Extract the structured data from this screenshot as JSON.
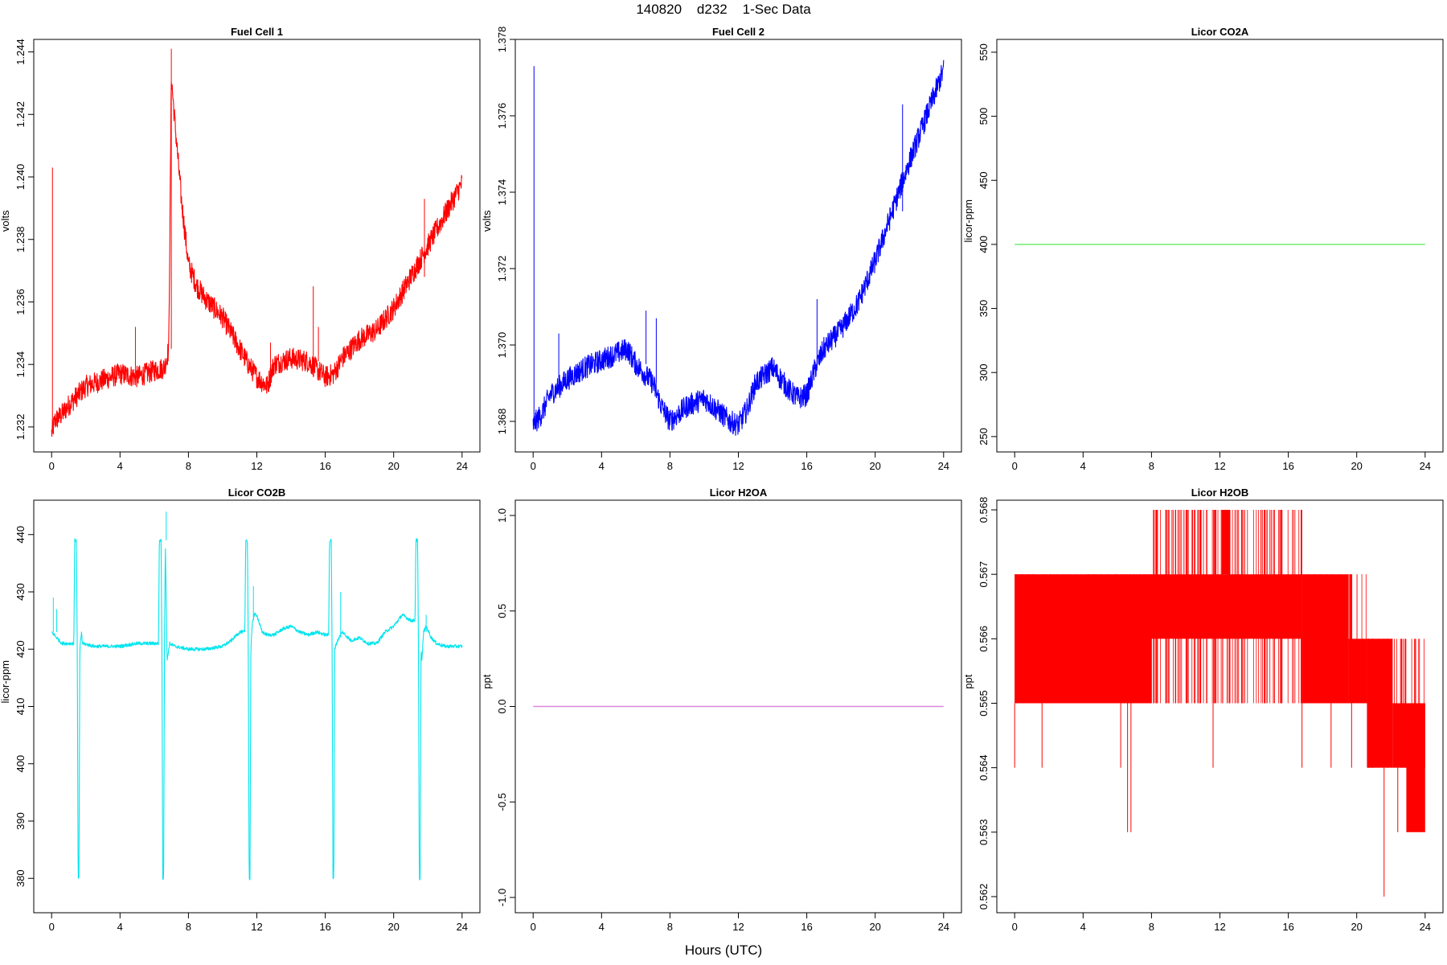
{
  "page": {
    "title": "140820    d232    1-Sec Data",
    "x_axis_title": "Hours (UTC)"
  },
  "chart_data": [
    {
      "id": "fuel-cell-1",
      "type": "line",
      "title": "Fuel Cell 1",
      "xlabel": "",
      "ylabel": "volts",
      "color": "#ff0000",
      "xlim": [
        0,
        24
      ],
      "ylim": [
        1.2312,
        1.2444
      ],
      "xticks": [
        0,
        4,
        8,
        12,
        16,
        20,
        24
      ],
      "yticks": [
        1.232,
        1.234,
        1.236,
        1.238,
        1.24,
        1.242,
        1.244
      ],
      "ytick_labels": [
        "1.232",
        "1.234",
        "1.236",
        "1.238",
        "1.240",
        "1.242",
        "1.244"
      ],
      "noise": 0.00035,
      "spikes": [
        [
          0.05,
          1.2403
        ],
        [
          7.0,
          1.2441
        ],
        [
          4.9,
          1.2352
        ],
        [
          12.8,
          1.2347
        ],
        [
          15.3,
          1.2365
        ],
        [
          15.6,
          1.2352
        ],
        [
          21.8,
          1.2393
        ]
      ],
      "x": [
        0,
        0.2,
        0.6,
        1,
        1.5,
        2,
        3,
        4,
        5,
        6,
        6.6,
        6.85,
        7.0,
        7.2,
        7.6,
        8,
        8.5,
        9,
        10,
        11,
        11.5,
        12,
        12.6,
        13,
        14,
        15,
        16,
        16.5,
        17,
        18,
        19,
        20,
        21,
        22,
        23,
        24
      ],
      "y": [
        1.2318,
        1.2322,
        1.2324,
        1.2327,
        1.233,
        1.2333,
        1.2335,
        1.2337,
        1.2336,
        1.2338,
        1.2339,
        1.2345,
        1.2432,
        1.2418,
        1.2392,
        1.2372,
        1.2365,
        1.2361,
        1.2355,
        1.2345,
        1.234,
        1.2336,
        1.2333,
        1.234,
        1.2342,
        1.2341,
        1.2336,
        1.2337,
        1.2342,
        1.2348,
        1.2351,
        1.2358,
        1.2368,
        1.2378,
        1.2388,
        1.2398
      ]
    },
    {
      "id": "fuel-cell-2",
      "type": "line",
      "title": "Fuel Cell 2",
      "xlabel": "",
      "ylabel": "volts",
      "color": "#0000ff",
      "xlim": [
        0,
        24
      ],
      "ylim": [
        1.3672,
        1.378
      ],
      "xticks": [
        0,
        4,
        8,
        12,
        16,
        20,
        24
      ],
      "yticks": [
        1.368,
        1.37,
        1.372,
        1.374,
        1.376,
        1.378
      ],
      "ytick_labels": [
        "1.368",
        "1.370",
        "1.372",
        "1.374",
        "1.376",
        "1.378"
      ],
      "noise": 0.0003,
      "spikes": [
        [
          0.05,
          1.3773
        ],
        [
          1.5,
          1.3703
        ],
        [
          6.6,
          1.3709
        ],
        [
          7.2,
          1.3707
        ],
        [
          16.6,
          1.3712
        ],
        [
          21.6,
          1.3763
        ]
      ],
      "x": [
        0,
        0.5,
        1,
        2,
        3,
        4,
        5,
        5.5,
        6,
        7,
        7.5,
        8,
        9,
        10,
        11,
        11.5,
        12,
        12.5,
        13,
        14,
        15,
        15.5,
        16,
        16.5,
        17,
        18,
        19,
        20,
        21,
        22,
        23,
        24
      ],
      "y": [
        1.3679,
        1.3682,
        1.3687,
        1.3691,
        1.3694,
        1.3696,
        1.3698,
        1.3699,
        1.3695,
        1.369,
        1.3684,
        1.368,
        1.3684,
        1.3686,
        1.3682,
        1.368,
        1.3679,
        1.3683,
        1.369,
        1.3694,
        1.3688,
        1.3686,
        1.3687,
        1.3694,
        1.3699,
        1.3704,
        1.3711,
        1.3722,
        1.3735,
        1.3748,
        1.376,
        1.3772
      ]
    },
    {
      "id": "licor-co2a",
      "type": "line",
      "title": "Licor CO2A",
      "xlabel": "",
      "ylabel": "licor-ppm",
      "color": "#66ee66",
      "xlim": [
        0,
        24
      ],
      "ylim": [
        238,
        560
      ],
      "xticks": [
        0,
        4,
        8,
        12,
        16,
        20,
        24
      ],
      "yticks": [
        250,
        300,
        350,
        400,
        450,
        500,
        550
      ],
      "ytick_labels": [
        "250",
        "300",
        "350",
        "400",
        "450",
        "500",
        "550"
      ],
      "noise": 0,
      "spikes": [],
      "x": [
        0,
        24
      ],
      "y": [
        400,
        400
      ]
    },
    {
      "id": "licor-co2b",
      "type": "line",
      "title": "Licor CO2B",
      "xlabel": "",
      "ylabel": "licor-ppm",
      "color": "#00e5ee",
      "xlim": [
        0,
        24
      ],
      "ylim": [
        374,
        446
      ],
      "xticks": [
        0,
        4,
        8,
        12,
        16,
        20,
        24
      ],
      "yticks": [
        380,
        390,
        400,
        410,
        420,
        430,
        440
      ],
      "ytick_labels": [
        "380",
        "390",
        "400",
        "410",
        "420",
        "430",
        "440"
      ],
      "noise": 0.3,
      "spikes": [
        [
          0.1,
          429
        ],
        [
          0.3,
          427
        ],
        [
          6.7,
          444
        ],
        [
          11.8,
          431
        ],
        [
          16.9,
          430
        ],
        [
          21.9,
          426
        ]
      ],
      "x": [
        0,
        0.3,
        0.6,
        1.0,
        1.3,
        1.35,
        1.45,
        1.5,
        1.55,
        1.6,
        1.65,
        1.75,
        1.8,
        2.5,
        3,
        4,
        5,
        6,
        6.25,
        6.3,
        6.4,
        6.45,
        6.5,
        6.55,
        6.6,
        6.65,
        6.75,
        6.9,
        7.2,
        8,
        9,
        10,
        10.5,
        11,
        11.3,
        11.35,
        11.45,
        11.5,
        11.55,
        11.6,
        11.65,
        11.75,
        11.85,
        12,
        12.3,
        12.6,
        13,
        13.5,
        14,
        14.5,
        15,
        15.5,
        16,
        16.2,
        16.25,
        16.35,
        16.4,
        16.45,
        16.5,
        16.55,
        16.65,
        16.8,
        17,
        17.5,
        18,
        18.5,
        19,
        19.5,
        20,
        20.5,
        21,
        21.25,
        21.3,
        21.4,
        21.45,
        21.5,
        21.55,
        21.6,
        21.65,
        21.75,
        21.9,
        22.2,
        22.5,
        23,
        24
      ],
      "y": [
        423,
        422,
        421,
        421,
        421,
        439,
        439,
        420,
        380,
        380,
        420,
        423,
        421,
        420.5,
        420.5,
        420.5,
        421,
        421,
        421,
        439,
        439,
        420,
        380,
        380,
        420,
        439,
        418,
        421,
        420.5,
        420,
        420,
        420.5,
        421.5,
        423,
        423,
        439,
        439,
        420,
        380,
        380,
        420,
        425,
        426,
        426,
        423,
        422.5,
        422.5,
        423.5,
        424,
        423,
        422.5,
        423,
        422.5,
        422.5,
        439,
        439,
        420,
        380,
        380,
        420,
        421,
        422,
        423,
        421.5,
        422,
        421,
        421,
        423,
        424,
        426,
        425,
        425,
        439,
        439,
        420,
        380,
        380,
        420,
        418,
        423,
        424,
        422,
        421,
        420.5,
        420.5
      ]
    },
    {
      "id": "licor-h2oa",
      "type": "line",
      "title": "Licor H2OA",
      "xlabel": "",
      "ylabel": "ppt",
      "color": "#dd88dd",
      "xlim": [
        0,
        24
      ],
      "ylim": [
        -1.08,
        1.08
      ],
      "xticks": [
        0,
        4,
        8,
        12,
        16,
        20,
        24
      ],
      "yticks": [
        -1,
        -0.5,
        0,
        0.5,
        1
      ],
      "ytick_labels": [
        "-1.0",
        "-0.5",
        "0.0",
        "0.5",
        "1.0"
      ],
      "noise": 0,
      "spikes": [],
      "x": [
        0,
        24
      ],
      "y": [
        0,
        0
      ]
    },
    {
      "id": "licor-h2ob",
      "type": "line",
      "title": "Licor H2OB",
      "xlabel": "",
      "ylabel": "ppt",
      "color": "#ff0000",
      "xlim": [
        0,
        24
      ],
      "ylim": [
        0.56175,
        0.56815
      ],
      "xticks": [
        0,
        4,
        8,
        12,
        16,
        20,
        24
      ],
      "yticks": [
        0.562,
        0.563,
        0.564,
        0.565,
        0.566,
        0.567,
        0.568
      ],
      "ytick_labels": [
        "0.562",
        "0.563",
        "0.564",
        "0.565",
        "0.566",
        "0.567",
        "0.568"
      ],
      "bands": [
        {
          "x0": 0,
          "x1": 8,
          "lo": 0.565,
          "hi": 0.567
        },
        {
          "x0": 8,
          "x1": 16.8,
          "lo": 0.566,
          "hi": 0.567
        },
        {
          "x0": 12.1,
          "x1": 12.6,
          "lo": 0.567,
          "hi": 0.568
        },
        {
          "x0": 16.8,
          "x1": 19.5,
          "lo": 0.565,
          "hi": 0.567
        },
        {
          "x0": 19.5,
          "x1": 20.6,
          "lo": 0.565,
          "hi": 0.566
        },
        {
          "x0": 20.6,
          "x1": 22.1,
          "lo": 0.564,
          "hi": 0.566
        },
        {
          "x0": 22.1,
          "x1": 24,
          "lo": 0.564,
          "hi": 0.565
        },
        {
          "x0": 22.9,
          "x1": 24,
          "lo": 0.563,
          "hi": 0.565
        }
      ],
      "spikes": [
        [
          0,
          0.564
        ],
        [
          1.6,
          0.564
        ],
        [
          6.2,
          0.564
        ],
        [
          6.6,
          0.563
        ],
        [
          6.8,
          0.563
        ],
        [
          8.3,
          0.568
        ],
        [
          9.2,
          0.568
        ],
        [
          9.9,
          0.568
        ],
        [
          10.4,
          0.568
        ],
        [
          10.9,
          0.568
        ],
        [
          11.7,
          0.568
        ],
        [
          11.6,
          0.564
        ],
        [
          14.4,
          0.568
        ],
        [
          15.0,
          0.568
        ],
        [
          15.5,
          0.568
        ],
        [
          16.8,
          0.564
        ],
        [
          18.5,
          0.564
        ],
        [
          19.7,
          0.564
        ],
        [
          21.6,
          0.562
        ],
        [
          22.4,
          0.563
        ]
      ]
    }
  ]
}
